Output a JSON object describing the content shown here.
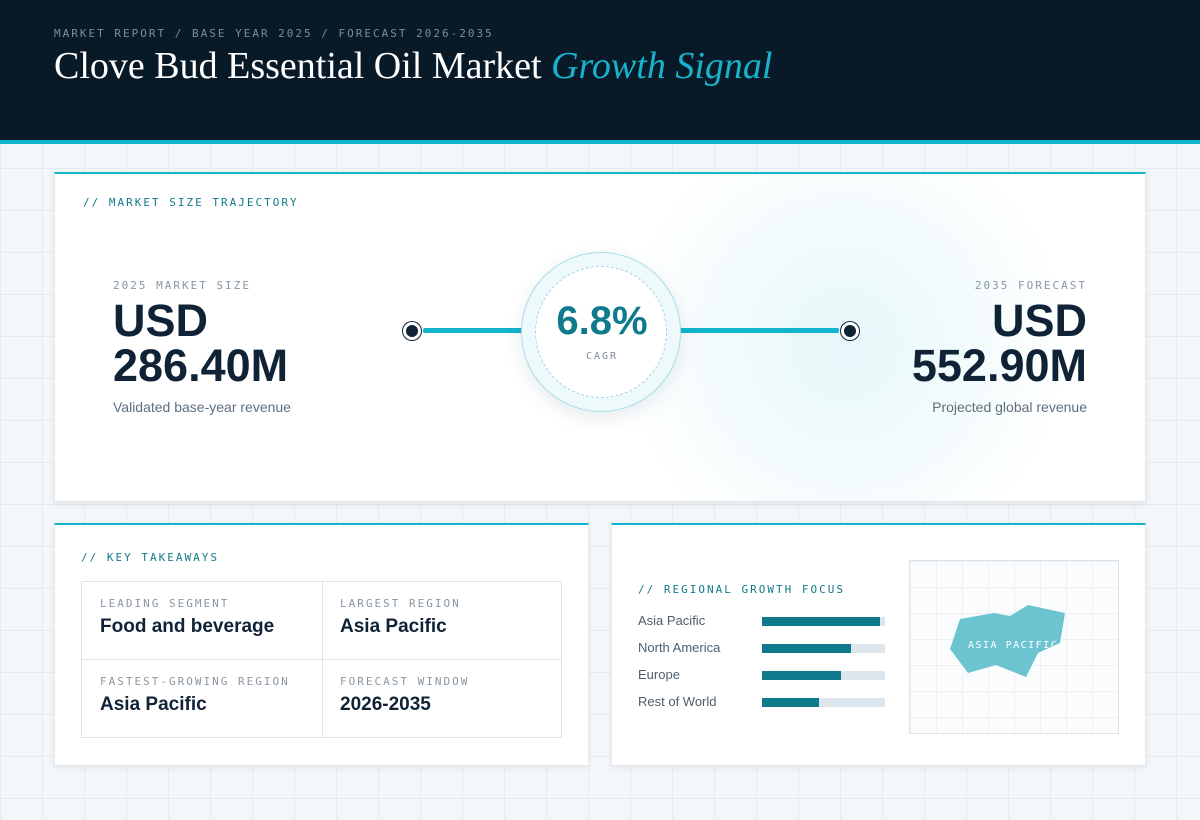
{
  "header": {
    "breadcrumb": "MARKET REPORT / BASE YEAR 2025 / FORECAST 2026-2035",
    "title_main": "Clove Bud Essential Oil Market",
    "title_accent": "Growth Signal"
  },
  "trajectory": {
    "label": "// MARKET SIZE TRAJECTORY",
    "start": {
      "label": "2025 MARKET SIZE",
      "value_line1": "USD",
      "value_line2": "286.40M",
      "sub": "Validated base-year revenue"
    },
    "end": {
      "label": "2035 FORECAST",
      "value_line1": "USD",
      "value_line2": "552.90M",
      "sub": "Projected global revenue"
    },
    "cagr": {
      "value": "6.8%",
      "label": "CAGR"
    },
    "colors": {
      "accent": "#12b5ce",
      "dark": "#0f2236",
      "teal": "#0f7a8c"
    }
  },
  "takeaways": {
    "label": "// KEY TAKEAWAYS",
    "items": [
      {
        "key": "LEADING SEGMENT",
        "value": "Food and beverage"
      },
      {
        "key": "LARGEST REGION",
        "value": "Asia Pacific"
      },
      {
        "key": "FASTEST-GROWING REGION",
        "value": "Asia Pacific"
      },
      {
        "key": "FORECAST WINDOW",
        "value": "2026-2035"
      }
    ]
  },
  "regional": {
    "label": "// REGIONAL GROWTH FOCUS",
    "regions": [
      {
        "name": "Asia Pacific",
        "level": 0.96
      },
      {
        "name": "North America",
        "level": 0.72
      },
      {
        "name": "Europe",
        "level": 0.64
      },
      {
        "name": "Rest of World",
        "level": 0.46
      }
    ],
    "map_label": "ASIA PACIFIC",
    "colors": {
      "fill": "#0e7a8c",
      "track": "#dce6ec",
      "map_shape": "#6cc4d1"
    }
  }
}
